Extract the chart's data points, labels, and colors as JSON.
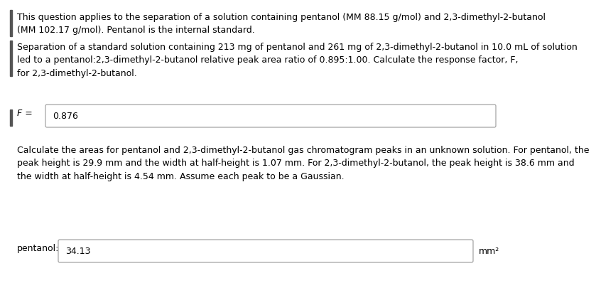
{
  "bg_color": "#ffffff",
  "text_color": "#000000",
  "left_bar_color": "#555555",
  "box_border_color": "#999999",
  "paragraph1": "This question applies to the separation of a solution containing pentanol (MM 88.15 g/mol) and 2,3-dimethyl-2-butanol\n(MM 102.17 g/mol). Pentanol is the internal standard.",
  "paragraph2": "Separation of a standard solution containing 213 mg of pentanol and 261 mg of 2,3-dimethyl-2-butanol in 10.0 mL of solution\nled to a pentanol:2,3-dimethyl-2-butanol relative peak area ratio of 0.895:1.00. Calculate the response factor, F,\nfor 2,3-dimethyl-2-butanol.",
  "f_label": "F =",
  "f_value": "0.876",
  "paragraph3": "Calculate the areas for pentanol and 2,3-dimethyl-2-butanol gas chromatogram peaks in an unknown solution. For pentanol, the\npeak height is 29.9 mm and the width at half-height is 1.07 mm. For 2,3-dimethyl-2-butanol, the peak height is 38.6 mm and\nthe width at half-height is 4.54 mm. Assume each peak to be a Gaussian.",
  "pentanol_label": "pentanol:",
  "pentanol_value": "34.13",
  "unit": "mm²",
  "fontsize": 9.0
}
